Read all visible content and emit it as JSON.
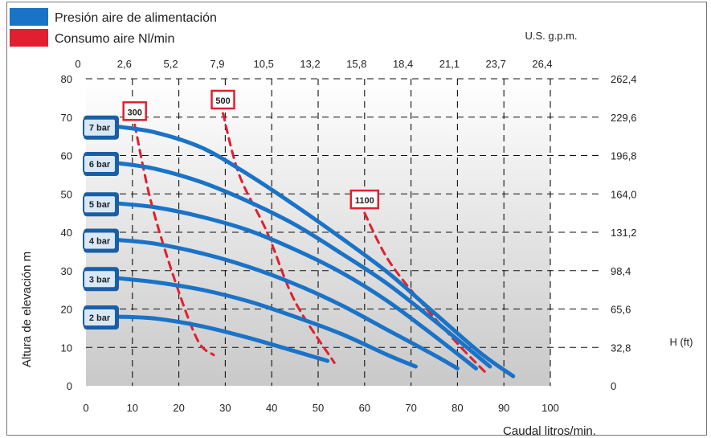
{
  "chart_data": {
    "type": "line",
    "legend": [
      {
        "label": "Presión aire de alimentación",
        "color": "#1a73c7"
      },
      {
        "label": "Consumo aire Nl/min",
        "color": "#e02030"
      }
    ],
    "legend_placement": "top-left",
    "xlabel": "Caudal litros/min.",
    "ylabel": "Altura de elevación  m",
    "x2label": "U.S. g.p.m.",
    "y2label": "H (ft)",
    "xlim": [
      0,
      100
    ],
    "ylim": [
      0,
      80
    ],
    "x_ticks": [
      "0",
      "10",
      "20",
      "30",
      "40",
      "50",
      "60",
      "70",
      "80",
      "90",
      "100"
    ],
    "y_ticks": [
      "0",
      "10",
      "20",
      "30",
      "40",
      "50",
      "60",
      "70",
      "80"
    ],
    "x2_ticks": [
      "0",
      "2,6",
      "5,2",
      "7,9",
      "10,5",
      "13,2",
      "15,8",
      "18,4",
      "21,1",
      "23,7",
      "26,4"
    ],
    "y2_ticks": [
      "0",
      "32,8",
      "65,6",
      "98,4",
      "131,2",
      "164,0",
      "196,8",
      "229,6",
      "262,4"
    ],
    "grid": true,
    "series": [
      {
        "name": "2 bar",
        "points": [
          [
            7,
            18
          ],
          [
            15,
            17.5
          ],
          [
            25,
            15.5
          ],
          [
            35,
            12.5
          ],
          [
            45,
            9
          ],
          [
            52,
            6.5
          ]
        ]
      },
      {
        "name": "3 bar",
        "points": [
          [
            7,
            28
          ],
          [
            15,
            27
          ],
          [
            25,
            25
          ],
          [
            35,
            22
          ],
          [
            45,
            18
          ],
          [
            55,
            13.5
          ],
          [
            65,
            8
          ],
          [
            71,
            5
          ]
        ]
      },
      {
        "name": "4 bar",
        "points": [
          [
            7,
            38
          ],
          [
            15,
            37
          ],
          [
            25,
            34.5
          ],
          [
            35,
            31
          ],
          [
            45,
            26.5
          ],
          [
            55,
            21
          ],
          [
            65,
            14.5
          ],
          [
            75,
            8
          ],
          [
            80,
            4.5
          ]
        ]
      },
      {
        "name": "5 bar",
        "points": [
          [
            7,
            47.5
          ],
          [
            15,
            46.5
          ],
          [
            25,
            44
          ],
          [
            35,
            40.5
          ],
          [
            45,
            35.5
          ],
          [
            55,
            29.5
          ],
          [
            65,
            22
          ],
          [
            75,
            13
          ],
          [
            84,
            4.5
          ]
        ]
      },
      {
        "name": "6 bar",
        "points": [
          [
            7,
            58
          ],
          [
            15,
            56.5
          ],
          [
            25,
            53
          ],
          [
            35,
            48
          ],
          [
            45,
            42
          ],
          [
            55,
            34.5
          ],
          [
            65,
            26.5
          ],
          [
            75,
            17
          ],
          [
            87,
            5
          ]
        ]
      },
      {
        "name": "7 bar",
        "points": [
          [
            7,
            67.5
          ],
          [
            15,
            66
          ],
          [
            25,
            62
          ],
          [
            35,
            55
          ],
          [
            45,
            47
          ],
          [
            55,
            38.5
          ],
          [
            65,
            29.5
          ],
          [
            75,
            19
          ],
          [
            85,
            8.5
          ],
          [
            92,
            2.5
          ]
        ]
      }
    ],
    "consumption_curves": [
      {
        "name": "300",
        "points": [
          [
            10.5,
            68
          ],
          [
            14,
            48
          ],
          [
            19,
            28
          ],
          [
            24,
            12
          ],
          [
            27.5,
            8
          ]
        ]
      },
      {
        "name": "500",
        "points": [
          [
            29.5,
            71
          ],
          [
            33,
            55
          ],
          [
            39,
            40
          ],
          [
            45,
            22
          ],
          [
            53.5,
            6
          ]
        ]
      },
      {
        "name": "1100",
        "points": [
          [
            60,
            45
          ],
          [
            65,
            33
          ],
          [
            72,
            22
          ],
          [
            80,
            11
          ],
          [
            86,
            3.5
          ]
        ]
      }
    ]
  }
}
